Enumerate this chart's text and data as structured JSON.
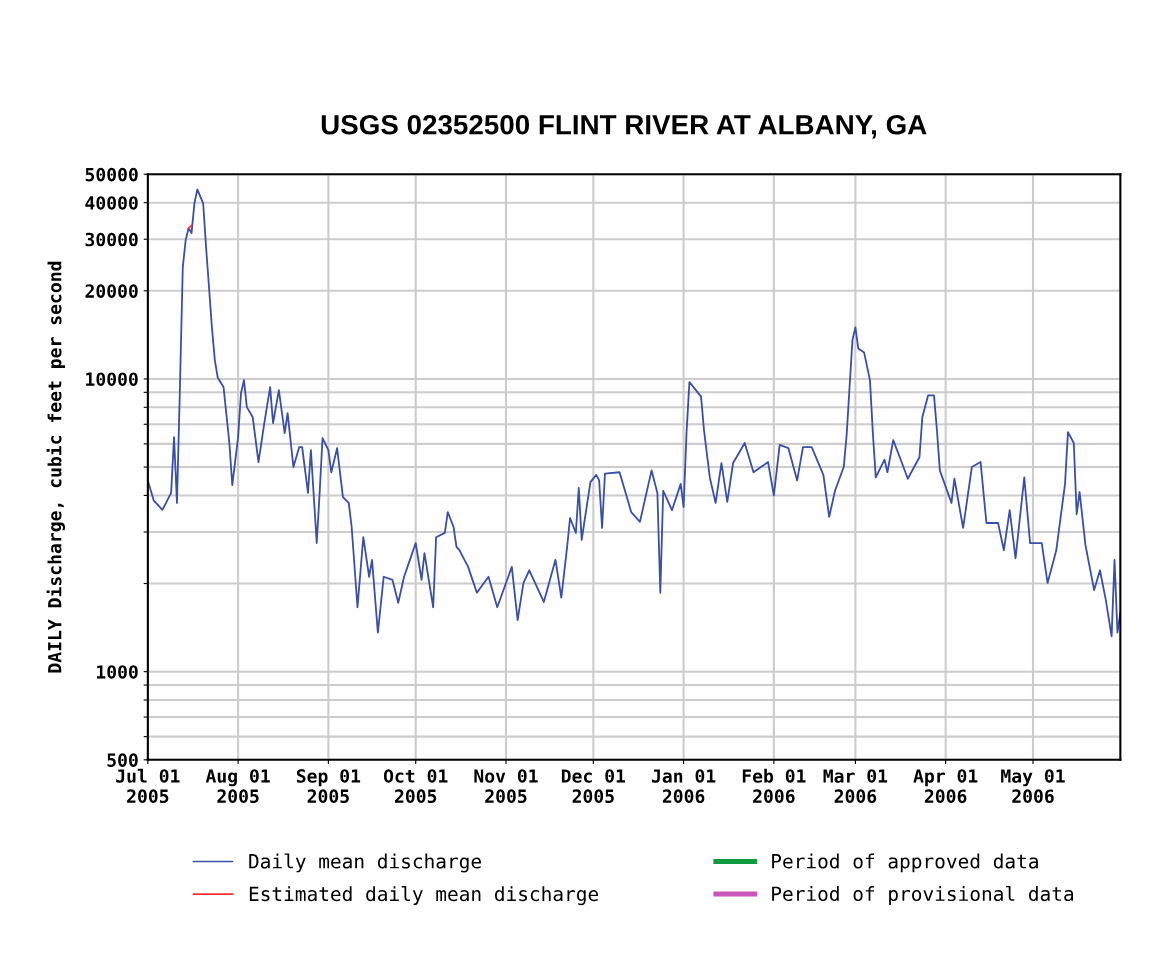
{
  "chart_data": {
    "type": "line",
    "title": "USGS 02352500 FLINT RIVER AT ALBANY, GA",
    "ylabel": "DAILY Discharge, cubic feet per second",
    "log": "y",
    "grid": true,
    "legend": "bottom",
    "marker": "none",
    "line_style": "solid",
    "xlim": [
      "2005-07-01",
      "2006-05-31"
    ],
    "xticks": [
      {
        "value": "2005-07-01",
        "label": "Jul 01\n2005"
      },
      {
        "value": "2005-08-01",
        "label": "Aug 01\n2005"
      },
      {
        "value": "2005-09-01",
        "label": "Sep 01\n2005"
      },
      {
        "value": "2005-10-01",
        "label": "Oct 01\n2005"
      },
      {
        "value": "2005-11-01",
        "label": "Nov 01\n2005"
      },
      {
        "value": "2005-12-01",
        "label": "Dec 01\n2005"
      },
      {
        "value": "2006-01-01",
        "label": "Jan 01\n2006"
      },
      {
        "value": "2006-02-01",
        "label": "Feb 01\n2006"
      },
      {
        "value": "2006-03-01",
        "label": "Mar 01\n2006"
      },
      {
        "value": "2006-04-01",
        "label": "Apr 01\n2006"
      },
      {
        "value": "2006-05-01",
        "label": "May 01\n2006"
      }
    ],
    "ylim": [
      500,
      50000
    ],
    "yticks": [
      500,
      {
        "value": 600,
        "label": null
      },
      {
        "value": 700,
        "label": null
      },
      {
        "value": 800,
        "label": null
      },
      {
        "value": 900,
        "label": null
      },
      1000,
      {
        "value": 2000,
        "label": null
      },
      {
        "value": 3000,
        "label": null
      },
      {
        "value": 4000,
        "label": null
      },
      {
        "value": 5000,
        "label": null
      },
      {
        "value": 6000,
        "label": null
      },
      {
        "value": 7000,
        "label": null
      },
      {
        "value": 8000,
        "label": null
      },
      {
        "value": 9000,
        "label": null
      },
      10000,
      20000,
      30000,
      40000,
      50000
    ],
    "series": [
      {
        "name": "Daily mean discharge",
        "color": "#3a4fa8",
        "x": [
          "2005-07-01",
          "2005-07-03",
          "2005-07-06",
          "2005-07-09",
          "2005-07-10",
          "2005-07-11",
          "2005-07-12",
          "2005-07-13",
          "2005-07-14",
          "2005-07-15",
          "2005-07-16",
          "2005-07-17",
          "2005-07-18",
          "2005-07-20",
          "2005-07-21",
          "2005-07-22",
          "2005-07-23",
          "2005-07-24",
          "2005-07-25",
          "2005-07-27",
          "2005-07-29",
          "2005-07-30",
          "2005-08-01",
          "2005-08-02",
          "2005-08-03",
          "2005-08-04",
          "2005-08-06",
          "2005-08-08",
          "2005-08-10",
          "2005-08-12",
          "2005-08-13",
          "2005-08-15",
          "2005-08-17",
          "2005-08-18",
          "2005-08-20",
          "2005-08-22",
          "2005-08-23",
          "2005-08-25",
          "2005-08-26",
          "2005-08-28",
          "2005-08-29",
          "2005-08-30",
          "2005-09-01",
          "2005-09-02",
          "2005-09-04",
          "2005-09-06",
          "2005-09-08",
          "2005-09-09",
          "2005-09-11",
          "2005-09-13",
          "2005-09-15",
          "2005-09-16",
          "2005-09-18",
          "2005-09-20",
          "2005-09-23",
          "2005-09-25",
          "2005-09-27",
          "2005-09-29",
          "2005-10-01",
          "2005-10-03",
          "2005-10-04",
          "2005-10-07",
          "2005-10-08",
          "2005-10-11",
          "2005-10-12",
          "2005-10-14",
          "2005-10-15",
          "2005-10-16",
          "2005-10-19",
          "2005-10-22",
          "2005-10-26",
          "2005-10-29",
          "2005-11-03",
          "2005-11-05",
          "2005-11-07",
          "2005-11-09",
          "2005-11-14",
          "2005-11-18",
          "2005-11-20",
          "2005-11-22",
          "2005-11-23",
          "2005-11-25",
          "2005-11-26",
          "2005-11-27",
          "2005-11-30",
          "2005-12-02",
          "2005-12-03",
          "2005-12-04",
          "2005-12-05",
          "2005-12-10",
          "2005-12-12",
          "2005-12-14",
          "2005-12-17",
          "2005-12-21",
          "2005-12-23",
          "2005-12-24",
          "2005-12-25",
          "2005-12-28",
          "2005-12-31",
          "2006-01-01",
          "2006-01-02",
          "2006-01-03",
          "2006-01-07",
          "2006-01-08",
          "2006-01-10",
          "2006-01-12",
          "2006-01-14",
          "2006-01-16",
          "2006-01-18",
          "2006-01-22",
          "2006-01-25",
          "2006-01-30",
          "2006-02-01",
          "2006-02-03",
          "2006-02-06",
          "2006-02-09",
          "2006-02-11",
          "2006-02-14",
          "2006-02-18",
          "2006-02-20",
          "2006-02-22",
          "2006-02-25",
          "2006-02-26",
          "2006-02-27",
          "2006-02-28",
          "2006-03-01",
          "2006-03-02",
          "2006-03-04",
          "2006-03-06",
          "2006-03-07",
          "2006-03-08",
          "2006-03-11",
          "2006-03-12",
          "2006-03-14",
          "2006-03-17",
          "2006-03-19",
          "2006-03-23",
          "2006-03-24",
          "2006-03-26",
          "2006-03-28",
          "2006-03-29",
          "2006-03-30",
          "2006-04-03",
          "2006-04-04",
          "2006-04-07",
          "2006-04-10",
          "2006-04-13",
          "2006-04-15",
          "2006-04-19",
          "2006-04-21",
          "2006-04-23",
          "2006-04-25",
          "2006-04-28",
          "2006-04-30",
          "2006-05-04",
          "2006-05-06",
          "2006-05-09",
          "2006-05-12",
          "2006-05-13",
          "2006-05-15",
          "2006-05-16",
          "2006-05-17",
          "2006-05-19",
          "2006-05-22",
          "2006-05-24",
          "2006-05-26",
          "2006-05-28",
          "2006-05-29",
          "2006-05-30",
          "2006-05-31"
        ],
        "values": [
          4500,
          3850,
          3570,
          4080,
          6330,
          3770,
          9160,
          24100,
          29800,
          32700,
          31500,
          39800,
          44400,
          39800,
          28200,
          20600,
          15000,
          11600,
          10100,
          9380,
          6040,
          4340,
          6330,
          8950,
          9910,
          8010,
          7410,
          5200,
          7060,
          9380,
          7060,
          9160,
          6530,
          7640,
          5000,
          5850,
          5850,
          4080,
          5710,
          2750,
          4080,
          6280,
          5710,
          4800,
          5800,
          3950,
          3770,
          3120,
          1660,
          2880,
          2110,
          2410,
          1360,
          2110,
          2060,
          1720,
          2110,
          2410,
          2750,
          2060,
          2540,
          1660,
          2880,
          2980,
          3510,
          3120,
          2670,
          2600,
          2280,
          1860,
          2110,
          1660,
          2280,
          1500,
          2010,
          2220,
          1730,
          2410,
          1790,
          2670,
          3350,
          2980,
          4240,
          2820,
          4440,
          4700,
          4500,
          3100,
          4750,
          4800,
          4110,
          3510,
          3250,
          4870,
          4080,
          1860,
          4150,
          3560,
          4380,
          3650,
          6530,
          9750,
          8700,
          6690,
          4610,
          3770,
          5160,
          3800,
          5160,
          6040,
          4800,
          5200,
          4000,
          5950,
          5800,
          4500,
          5850,
          5850,
          4700,
          3380,
          4150,
          5000,
          6430,
          9380,
          13600,
          15000,
          12700,
          12300,
          9910,
          6530,
          4610,
          5300,
          4800,
          6180,
          5160,
          4560,
          5400,
          7410,
          8790,
          8790,
          6690,
          4870,
          3770,
          4560,
          3100,
          5000,
          5200,
          3220,
          3220,
          2600,
          3560,
          2440,
          4610,
          2750,
          2750,
          2010,
          2600,
          4380,
          6580,
          6040,
          3450,
          4110,
          2710,
          1900,
          2220,
          1760,
          1320,
          2410,
          1360,
          1590
        ]
      },
      {
        "name": "Estimated daily mean discharge",
        "color": "#ff3030",
        "x": [
          "2005-07-15",
          "2005-07-16"
        ],
        "values": [
          32700,
          33500
        ]
      },
      {
        "name": "Period of approved data",
        "color": "#109a40"
      },
      {
        "name": "Period of provisional data",
        "color": "#cc55bb"
      }
    ]
  }
}
